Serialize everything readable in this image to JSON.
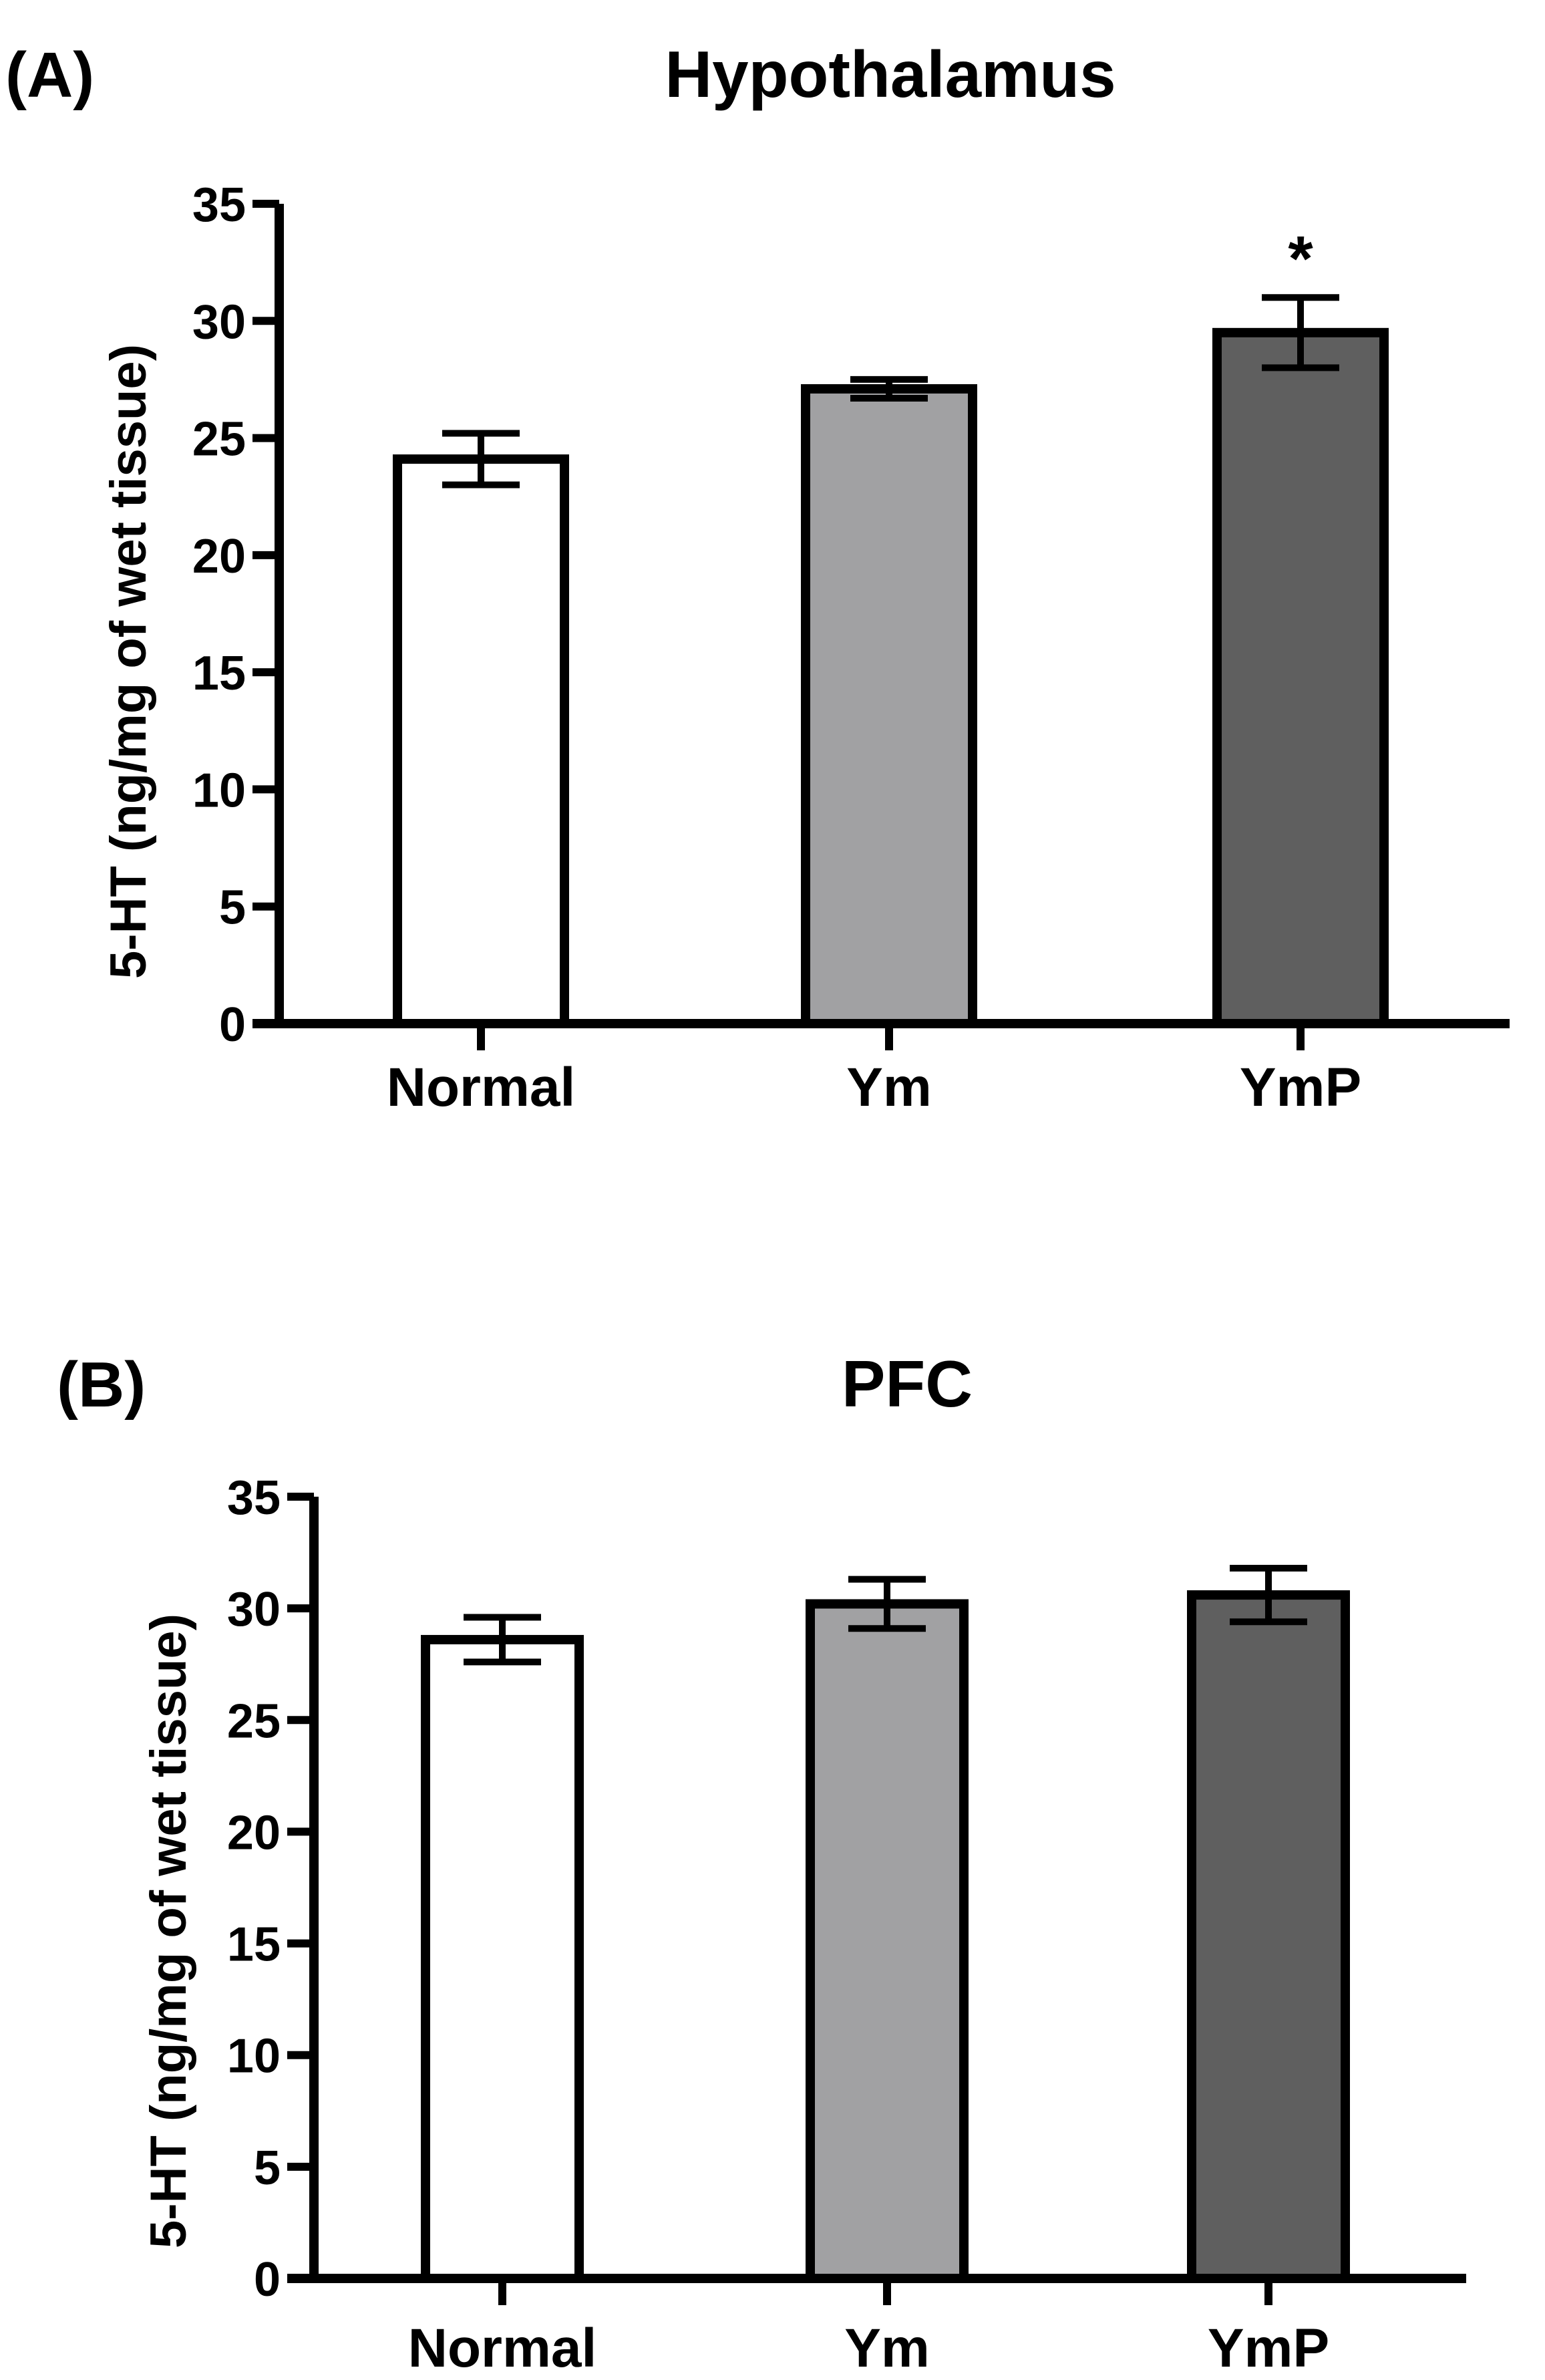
{
  "chart_data": [
    {
      "type": "bar",
      "panel_label": "(A)",
      "title": "Hypothalamus",
      "xlabel": "",
      "ylabel": "5-HT (ng/mg of wet tissue)",
      "ylim": [
        0,
        35
      ],
      "yticks": [
        "0",
        "5",
        "10",
        "15",
        "20",
        "25",
        "30",
        "35"
      ],
      "categories": [
        "Normal",
        "Ym",
        "YmP"
      ],
      "values": [
        24.1,
        27.1,
        29.5
      ],
      "errors": [
        1.1,
        0.4,
        1.5
      ],
      "colors": [
        "#ffffff",
        "#a1a1a3",
        "#5f5f5f"
      ],
      "annotations": [
        "",
        "",
        "*"
      ],
      "grid": false,
      "legend": "none"
    },
    {
      "type": "bar",
      "panel_label": "(B)",
      "title": "PFC",
      "xlabel": "",
      "ylabel": "5-HT (ng/mg of wet tissue)",
      "ylim": [
        0,
        35
      ],
      "yticks": [
        "0",
        "5",
        "10",
        "15",
        "20",
        "25",
        "30",
        "35"
      ],
      "categories": [
        "Normal",
        "Ym",
        "YmP"
      ],
      "values": [
        28.6,
        30.2,
        30.6
      ],
      "errors": [
        1.0,
        1.1,
        1.2
      ],
      "colors": [
        "#ffffff",
        "#a1a1a3",
        "#5f5f5f"
      ],
      "annotations": [
        "",
        "",
        ""
      ],
      "grid": false,
      "legend": "none"
    }
  ]
}
